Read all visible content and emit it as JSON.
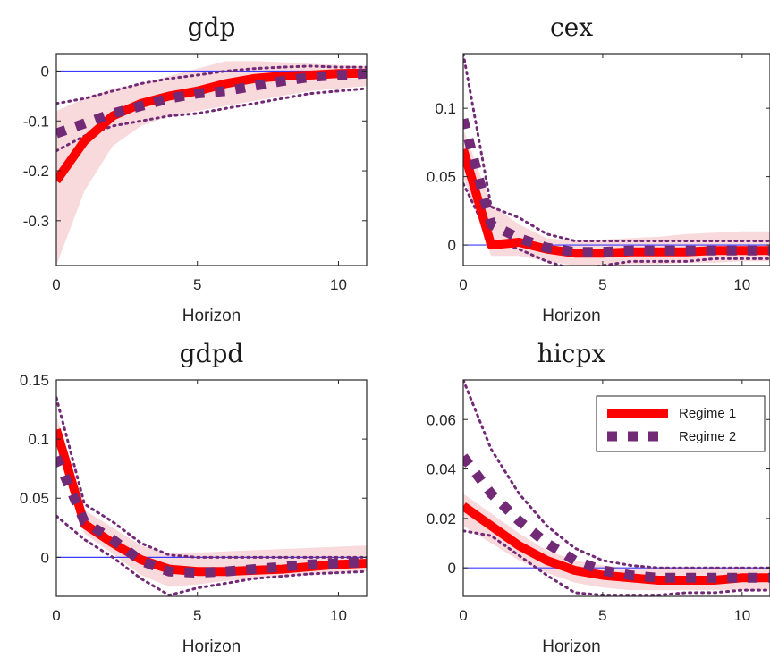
{
  "chart_data": [
    {
      "type": "line",
      "title": "gdp",
      "xlabel": "Horizon",
      "ylabel": "",
      "x": [
        0,
        1,
        2,
        3,
        4,
        5,
        6,
        7,
        8,
        9,
        10,
        11
      ],
      "xlim": [
        0,
        11
      ],
      "ylim": [
        -0.39,
        0.035
      ],
      "xticks": [
        0,
        5,
        10
      ],
      "xtick_labels": [
        "0",
        "5",
        "10"
      ],
      "yticks": [
        0,
        -0.1,
        -0.2,
        -0.3
      ],
      "ytick_labels": [
        "0",
        "-0.1",
        "-0.2",
        "-0.3"
      ],
      "series": [
        {
          "name": "Regime 1",
          "style": "solid",
          "color": "#ff0000",
          "values": [
            -0.22,
            -0.14,
            -0.09,
            -0.065,
            -0.05,
            -0.04,
            -0.025,
            -0.015,
            -0.01,
            -0.008,
            -0.005,
            -0.004
          ]
        },
        {
          "name": "Regime 2",
          "style": "dotted",
          "color": "#722a76",
          "values": [
            -0.125,
            -0.105,
            -0.085,
            -0.07,
            -0.055,
            -0.045,
            -0.04,
            -0.03,
            -0.02,
            -0.012,
            -0.008,
            -0.005
          ]
        },
        {
          "role": "regime-2-bands",
          "style": "dotted",
          "color": "#722a76",
          "upper": [
            -0.065,
            -0.055,
            -0.04,
            -0.025,
            -0.015,
            -0.008,
            0.0,
            0.005,
            0.008,
            0.01,
            0.008,
            0.008
          ],
          "lower": [
            -0.16,
            -0.13,
            -0.11,
            -0.1,
            -0.09,
            -0.085,
            -0.075,
            -0.065,
            -0.055,
            -0.045,
            -0.04,
            -0.035
          ]
        }
      ],
      "band": {
        "color": "#f8dadc",
        "upper": [
          -0.08,
          -0.055,
          -0.035,
          -0.025,
          -0.01,
          0.005,
          0.02,
          0.02,
          0.018,
          0.015,
          0.012,
          0.01
        ],
        "lower": [
          -0.39,
          -0.24,
          -0.15,
          -0.11,
          -0.09,
          -0.08,
          -0.07,
          -0.06,
          -0.05,
          -0.04,
          -0.035,
          -0.03
        ]
      },
      "zero_line": true,
      "grid": false
    },
    {
      "type": "line",
      "title": "cex",
      "xlabel": "Horizon",
      "ylabel": "",
      "x": [
        0,
        1,
        2,
        3,
        4,
        5,
        6,
        7,
        8,
        9,
        10,
        11
      ],
      "xlim": [
        0,
        11
      ],
      "ylim": [
        -0.015,
        0.14
      ],
      "xticks": [
        0,
        5,
        10
      ],
      "xtick_labels": [
        "0",
        "5",
        "10"
      ],
      "yticks": [
        0,
        0.05,
        0.1
      ],
      "ytick_labels": [
        "0",
        "0.05",
        "0.1"
      ],
      "series": [
        {
          "name": "Regime 1",
          "style": "solid",
          "color": "#ff0000",
          "values": [
            0.07,
            0.0,
            0.002,
            -0.003,
            -0.006,
            -0.006,
            -0.005,
            -0.005,
            -0.005,
            -0.004,
            -0.004,
            -0.004
          ]
        },
        {
          "name": "Regime 2",
          "style": "dotted",
          "color": "#722a76",
          "values": [
            0.092,
            0.015,
            0.005,
            -0.002,
            -0.005,
            -0.005,
            -0.004,
            -0.004,
            -0.004,
            -0.004,
            -0.004,
            -0.004
          ]
        },
        {
          "role": "regime-2-bands",
          "style": "dotted",
          "color": "#722a76",
          "upper": [
            0.14,
            0.028,
            0.02,
            0.008,
            0.003,
            0.003,
            0.003,
            0.003,
            0.003,
            0.003,
            0.003,
            0.003
          ],
          "lower": [
            0.045,
            0.003,
            -0.003,
            -0.012,
            -0.018,
            -0.015,
            -0.012,
            -0.012,
            -0.012,
            -0.01,
            -0.01,
            -0.01
          ]
        }
      ],
      "band": {
        "color": "#f8dadc",
        "upper": [
          0.085,
          0.03,
          0.015,
          0.005,
          0.003,
          0.004,
          0.005,
          0.006,
          0.008,
          0.009,
          0.01,
          0.01
        ],
        "lower": [
          0.05,
          -0.008,
          -0.008,
          -0.012,
          -0.015,
          -0.015,
          -0.014,
          -0.014,
          -0.013,
          -0.013,
          -0.012,
          -0.012
        ]
      },
      "zero_line": true,
      "grid": false
    },
    {
      "type": "line",
      "title": "gdpd",
      "xlabel": "Horizon",
      "ylabel": "",
      "x": [
        0,
        1,
        2,
        3,
        4,
        5,
        6,
        7,
        8,
        9,
        10,
        11
      ],
      "xlim": [
        0,
        11
      ],
      "ylim": [
        -0.033,
        0.15
      ],
      "xticks": [
        0,
        5,
        10
      ],
      "xtick_labels": [
        "0",
        "5",
        "10"
      ],
      "yticks": [
        0,
        0.05,
        0.1,
        0.15
      ],
      "ytick_labels": [
        "0",
        "0.05",
        "0.1",
        "0.15"
      ],
      "series": [
        {
          "name": "Regime 1",
          "style": "solid",
          "color": "#ff0000",
          "values": [
            0.108,
            0.028,
            0.012,
            -0.002,
            -0.01,
            -0.012,
            -0.012,
            -0.011,
            -0.01,
            -0.008,
            -0.006,
            -0.005
          ]
        },
        {
          "name": "Regime 2",
          "style": "dotted",
          "color": "#722a76",
          "values": [
            0.085,
            0.03,
            0.015,
            -0.003,
            -0.012,
            -0.013,
            -0.012,
            -0.01,
            -0.008,
            -0.006,
            -0.005,
            -0.004
          ]
        },
        {
          "role": "regime-2-bands",
          "style": "dotted",
          "color": "#722a76",
          "upper": [
            0.135,
            0.045,
            0.03,
            0.012,
            0.002,
            0.0,
            0.0,
            0.0,
            0.0,
            0.0,
            0.0,
            0.0
          ],
          "lower": [
            0.035,
            0.015,
            0.0,
            -0.018,
            -0.032,
            -0.026,
            -0.022,
            -0.018,
            -0.016,
            -0.014,
            -0.013,
            -0.012
          ]
        }
      ],
      "band": {
        "color": "#f8dadc",
        "upper": [
          0.12,
          0.04,
          0.025,
          0.01,
          0.003,
          0.004,
          0.005,
          0.006,
          0.007,
          0.008,
          0.009,
          0.01
        ],
        "lower": [
          0.095,
          0.02,
          0.003,
          -0.015,
          -0.025,
          -0.023,
          -0.02,
          -0.018,
          -0.016,
          -0.015,
          -0.013,
          -0.012
        ]
      },
      "zero_line": true,
      "grid": false
    },
    {
      "type": "line",
      "title": "hicpx",
      "xlabel": "Horizon",
      "ylabel": "",
      "x": [
        0,
        1,
        2,
        3,
        4,
        5,
        6,
        7,
        8,
        9,
        10,
        11
      ],
      "xlim": [
        0,
        11
      ],
      "ylim": [
        -0.0115,
        0.076
      ],
      "xticks": [
        0,
        5,
        10
      ],
      "xtick_labels": [
        "0",
        "5",
        "10"
      ],
      "yticks": [
        0,
        0.02,
        0.04,
        0.06
      ],
      "ytick_labels": [
        "0",
        "0.02",
        "0.04",
        "0.06"
      ],
      "series": [
        {
          "name": "Regime 1",
          "style": "solid",
          "color": "#ff0000",
          "values": [
            0.025,
            0.017,
            0.009,
            0.003,
            -0.001,
            -0.003,
            -0.004,
            -0.005,
            -0.005,
            -0.005,
            -0.004,
            -0.004
          ]
        },
        {
          "name": "Regime 2",
          "style": "dotted",
          "color": "#722a76",
          "values": [
            0.045,
            0.03,
            0.019,
            0.01,
            0.003,
            -0.001,
            -0.003,
            -0.004,
            -0.004,
            -0.004,
            -0.004,
            -0.004
          ]
        },
        {
          "role": "regime-2-bands",
          "style": "dotted",
          "color": "#722a76",
          "upper": [
            0.076,
            0.048,
            0.03,
            0.017,
            0.008,
            0.003,
            0.001,
            0.0,
            0.0,
            0.0,
            0.0,
            0.0
          ],
          "lower": [
            0.015,
            0.013,
            0.005,
            -0.003,
            -0.01,
            -0.011,
            -0.011,
            -0.011,
            -0.01,
            -0.01,
            -0.009,
            -0.009
          ]
        }
      ],
      "band": {
        "color": "#f8dadc",
        "upper": [
          0.03,
          0.022,
          0.014,
          0.007,
          0.003,
          0.001,
          0.0,
          0.0,
          0.0,
          0.0,
          0.0,
          0.0
        ],
        "lower": [
          0.017,
          0.01,
          0.003,
          -0.002,
          -0.006,
          -0.008,
          -0.009,
          -0.009,
          -0.009,
          -0.009,
          -0.009,
          -0.009
        ]
      },
      "zero_line": true,
      "grid": false,
      "legend": {
        "placement": "top-right",
        "entries": [
          "Regime 1",
          "Regime 2"
        ]
      }
    }
  ],
  "colors": {
    "regime1": "#ff0000",
    "regime2": "#722a76",
    "band": "#f8dadc",
    "zero_line": "#3a3aff",
    "axes": "#262626"
  }
}
